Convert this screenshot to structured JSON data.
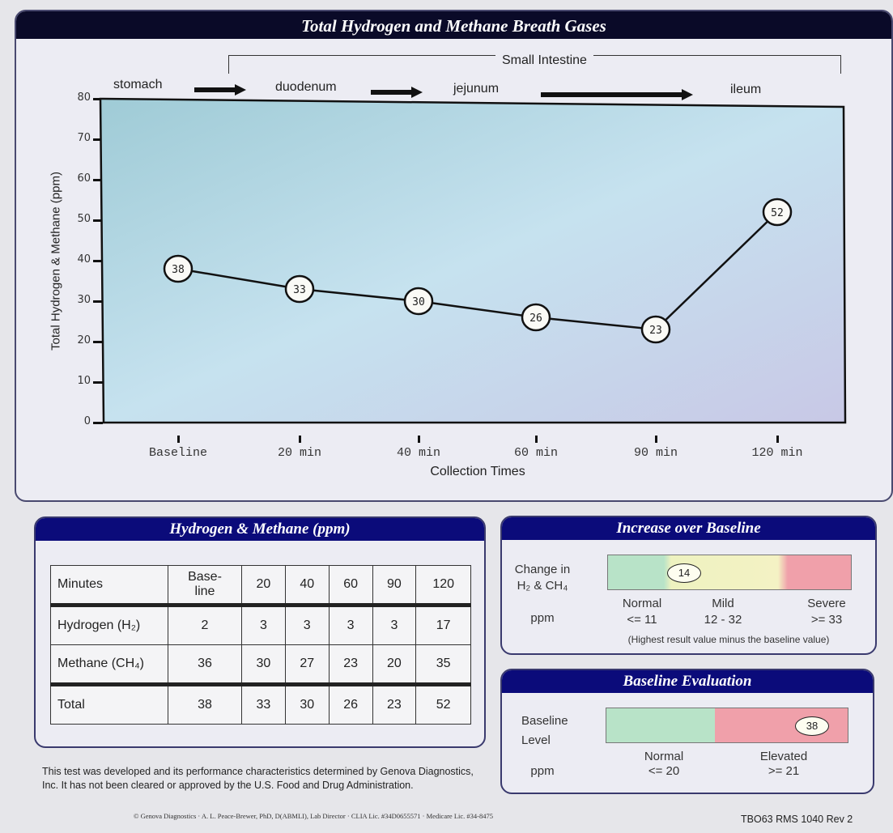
{
  "main_panel": {
    "title": "Total Hydrogen and Methane Breath Gases",
    "bracket_label": "Small Intestine",
    "regions": [
      "stomach",
      "duodenum",
      "jejunum",
      "ileum"
    ]
  },
  "chart_data": {
    "type": "line",
    "title": "Total Hydrogen and Methane Breath Gases",
    "xlabel": "Collection Times",
    "ylabel": "Total Hydrogen & Methane (ppm)",
    "categories": [
      "Baseline",
      "20 min",
      "40 min",
      "60 min",
      "90 min",
      "120 min"
    ],
    "values": [
      38,
      33,
      30,
      26,
      23,
      52
    ],
    "ylim": [
      0,
      80
    ],
    "yticks": [
      0,
      10,
      20,
      30,
      40,
      50,
      60,
      70,
      80
    ],
    "grid": false,
    "data_labels": true,
    "annotations": [
      "stomach",
      "duodenum",
      "jejunum",
      "ileum",
      "Small Intestine"
    ]
  },
  "gas_table": {
    "title": "Hydrogen & Methane (ppm)",
    "header": [
      "Minutes",
      "Base-\nline",
      "20",
      "40",
      "60",
      "90",
      "120"
    ],
    "rows": [
      {
        "label": "Hydrogen (H₂)",
        "values": [
          "2",
          "3",
          "3",
          "3",
          "3",
          "17"
        ]
      },
      {
        "label": "Methane (CH₄)",
        "values": [
          "36",
          "30",
          "27",
          "23",
          "20",
          "35"
        ]
      },
      {
        "label": "Total",
        "values": [
          "38",
          "33",
          "30",
          "26",
          "23",
          "52"
        ]
      }
    ]
  },
  "increase_panel": {
    "title": "Increase over Baseline",
    "row_label_1": "Change in",
    "row_label_2": "H₂ & CH₄",
    "unit": "ppm",
    "value": "14",
    "ranges": [
      {
        "name": "Normal",
        "range": "<= 11"
      },
      {
        "name": "Mild",
        "range": "12 - 32"
      },
      {
        "name": "Severe",
        "range": ">= 33"
      }
    ],
    "note": "(Highest result value minus the baseline value)",
    "colors": {
      "normal": "#b8e3c8",
      "mild": "#f2f2c0",
      "severe": "#f0a0aa"
    }
  },
  "baseline_panel": {
    "title": "Baseline Evaluation",
    "row_label_1": "Baseline",
    "row_label_2": "Level",
    "unit": "ppm",
    "value": "38",
    "ranges": [
      {
        "name": "Normal",
        "range": "<= 20"
      },
      {
        "name": "Elevated",
        "range": ">= 21"
      }
    ],
    "colors": {
      "normal": "#b8e3c8",
      "elevated": "#f0a0aa"
    }
  },
  "footer": {
    "disclaimer": "This test was developed and its performance characteristics determined by Genova Diagnostics, Inc.  It has not been cleared or approved by the U.S. Food and Drug Administration.",
    "credits": "© Genova Diagnostics · A. L. Peace-Brewer, PhD, D(ABMLI), Lab Director · CLIA Lic. #34D0655571 · Medicare Lic. #34-8475",
    "form_code": "TBO63 RMS 1040 Rev 2"
  }
}
